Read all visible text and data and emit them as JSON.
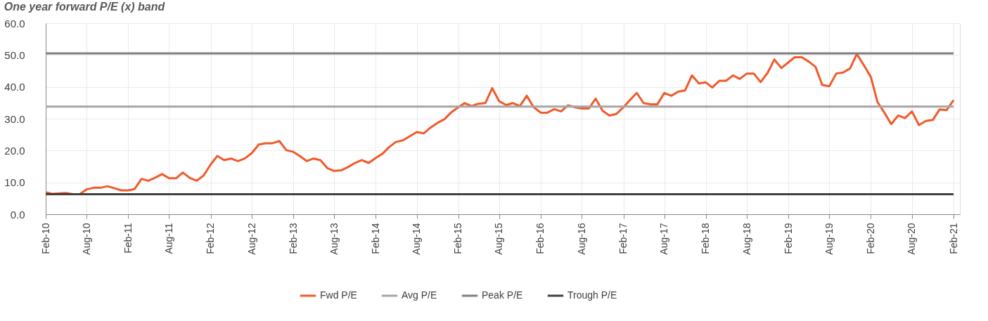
{
  "chart_data": {
    "type": "line",
    "title": "One year forward P/E (x) band",
    "xlim": [
      "2010-02",
      "2021-03"
    ],
    "xticks": [
      {
        "value": "2010-02",
        "label": "Feb-10"
      },
      {
        "value": "2010-08",
        "label": "Aug-10"
      },
      {
        "value": "2011-02",
        "label": "Feb-11"
      },
      {
        "value": "2011-08",
        "label": "Aug-11"
      },
      {
        "value": "2012-02",
        "label": "Feb-12"
      },
      {
        "value": "2012-08",
        "label": "Aug-12"
      },
      {
        "value": "2013-02",
        "label": "Feb-13"
      },
      {
        "value": "2013-08",
        "label": "Aug-13"
      },
      {
        "value": "2014-02",
        "label": "Feb-14"
      },
      {
        "value": "2014-08",
        "label": "Aug-14"
      },
      {
        "value": "2015-02",
        "label": "Feb-15"
      },
      {
        "value": "2015-08",
        "label": "Aug-15"
      },
      {
        "value": "2016-02",
        "label": "Feb-16"
      },
      {
        "value": "2016-08",
        "label": "Aug-16"
      },
      {
        "value": "2017-02",
        "label": "Feb-17"
      },
      {
        "value": "2017-08",
        "label": "Aug-17"
      },
      {
        "value": "2018-02",
        "label": "Feb-18"
      },
      {
        "value": "2018-08",
        "label": "Aug-18"
      },
      {
        "value": "2019-02",
        "label": "Feb-19"
      },
      {
        "value": "2019-08",
        "label": "Aug-19"
      },
      {
        "value": "2020-02",
        "label": "Feb-20"
      },
      {
        "value": "2020-08",
        "label": "Aug-20"
      },
      {
        "value": "2021-02",
        "label": "Feb-21"
      }
    ],
    "ylim": [
      0,
      60
    ],
    "yticks": [
      {
        "value": 0,
        "label": "0.0"
      },
      {
        "value": 10,
        "label": "10.0"
      },
      {
        "value": 20,
        "label": "20.0"
      },
      {
        "value": 30,
        "label": "30.0"
      },
      {
        "value": 40,
        "label": "40.0"
      },
      {
        "value": 50,
        "label": "50.0"
      },
      {
        "value": 60,
        "label": "60.0"
      }
    ],
    "grid": true,
    "legend": "bottom",
    "marker": "none",
    "line_style": "solid",
    "series": [
      {
        "name": "Fwd P/E",
        "color": "#f15a2b",
        "x": [
          "2010-02",
          "2010-03",
          "2010-05",
          "2010-06",
          "2010-07",
          "2010-08",
          "2010-09",
          "2010-10",
          "2010-11",
          "2010-12",
          "2011-01",
          "2011-02",
          "2011-03",
          "2011-04",
          "2011-05",
          "2011-06",
          "2011-07",
          "2011-08",
          "2011-09",
          "2011-10",
          "2011-11",
          "2011-12",
          "2012-01",
          "2012-02",
          "2012-03",
          "2012-04",
          "2012-05",
          "2012-06",
          "2012-07",
          "2012-08",
          "2012-09",
          "2012-10",
          "2012-11",
          "2012-12",
          "2013-01",
          "2013-02",
          "2013-03",
          "2013-04",
          "2013-05",
          "2013-06",
          "2013-07",
          "2013-08",
          "2013-09",
          "2013-10",
          "2013-11",
          "2013-12",
          "2014-01",
          "2014-02",
          "2014-03",
          "2014-04",
          "2014-05",
          "2014-06",
          "2014-07",
          "2014-08",
          "2014-09",
          "2014-10",
          "2014-11",
          "2014-12",
          "2015-01",
          "2015-02",
          "2015-03",
          "2015-04",
          "2015-05",
          "2015-06",
          "2015-07",
          "2015-08",
          "2015-09",
          "2015-10",
          "2015-11",
          "2015-12",
          "2016-01",
          "2016-02",
          "2016-03",
          "2016-04",
          "2016-05",
          "2016-06",
          "2016-07",
          "2016-08",
          "2016-09",
          "2016-10",
          "2016-11",
          "2016-12",
          "2017-01",
          "2017-02",
          "2017-03",
          "2017-04",
          "2017-05",
          "2017-06",
          "2017-07",
          "2017-08",
          "2017-09",
          "2017-10",
          "2017-11",
          "2017-12",
          "2018-01",
          "2018-02",
          "2018-03",
          "2018-04",
          "2018-05",
          "2018-06",
          "2018-07",
          "2018-08",
          "2018-09",
          "2018-10",
          "2018-11",
          "2018-12",
          "2019-01",
          "2019-02",
          "2019-03",
          "2019-04",
          "2019-05",
          "2019-06",
          "2019-07",
          "2019-08",
          "2019-09",
          "2019-10",
          "2019-11",
          "2019-12",
          "2020-01",
          "2020-02",
          "2020-03",
          "2020-04",
          "2020-05",
          "2020-06",
          "2020-07",
          "2020-08",
          "2020-09",
          "2020-10",
          "2020-11",
          "2020-12",
          "2021-01",
          "2021-02"
        ],
        "values": [
          6.9,
          6.4,
          6.7,
          6.3,
          6.3,
          7.8,
          8.3,
          8.3,
          8.8,
          8.2,
          7.5,
          7.5,
          7.9,
          11.1,
          10.5,
          11.5,
          12.6,
          11.3,
          11.3,
          13.1,
          11.4,
          10.5,
          12.2,
          15.6,
          18.3,
          17.0,
          17.5,
          16.7,
          17.5,
          19.2,
          21.9,
          22.3,
          22.3,
          23.0,
          20.1,
          19.6,
          18.3,
          16.7,
          17.5,
          17.0,
          14.5,
          13.6,
          13.8,
          14.8,
          16.1,
          17.0,
          16.1,
          17.7,
          18.9,
          21.1,
          22.7,
          23.2,
          24.5,
          25.8,
          25.4,
          27.2,
          28.7,
          29.8,
          32.0,
          33.6,
          34.9,
          34.0,
          34.7,
          34.9,
          39.6,
          35.5,
          34.3,
          34.9,
          34.0,
          37.2,
          33.6,
          31.9,
          31.9,
          33.0,
          32.3,
          34.2,
          33.6,
          33.2,
          33.2,
          36.3,
          32.5,
          31.0,
          31.5,
          33.6,
          35.8,
          38.1,
          34.9,
          34.5,
          34.5,
          38.1,
          37.2,
          38.5,
          38.9,
          43.6,
          41.1,
          41.4,
          39.8,
          41.9,
          41.9,
          43.6,
          42.5,
          44.2,
          44.2,
          41.5,
          44.4,
          48.6,
          45.9,
          47.7,
          49.3,
          49.3,
          48.0,
          46.3,
          40.6,
          40.2,
          44.2,
          44.5,
          45.8,
          50.3,
          46.8,
          43.1,
          35.3,
          31.9,
          28.3,
          31.0,
          30.2,
          32.3,
          28.0,
          29.3,
          29.6,
          32.9,
          32.7,
          35.8
        ]
      },
      {
        "name": "Avg P/E",
        "color": "#a6a6a6",
        "x": [
          "2010-02",
          "2021-02"
        ],
        "values": [
          33.8,
          33.8
        ]
      },
      {
        "name": "Peak P/E",
        "color": "#7f7f7f",
        "x": [
          "2010-02",
          "2021-02"
        ],
        "values": [
          50.5,
          50.5
        ]
      },
      {
        "name": "Trough P/E",
        "color": "#404040",
        "x": [
          "2010-02",
          "2021-02"
        ],
        "values": [
          6.3,
          6.3
        ]
      }
    ]
  }
}
